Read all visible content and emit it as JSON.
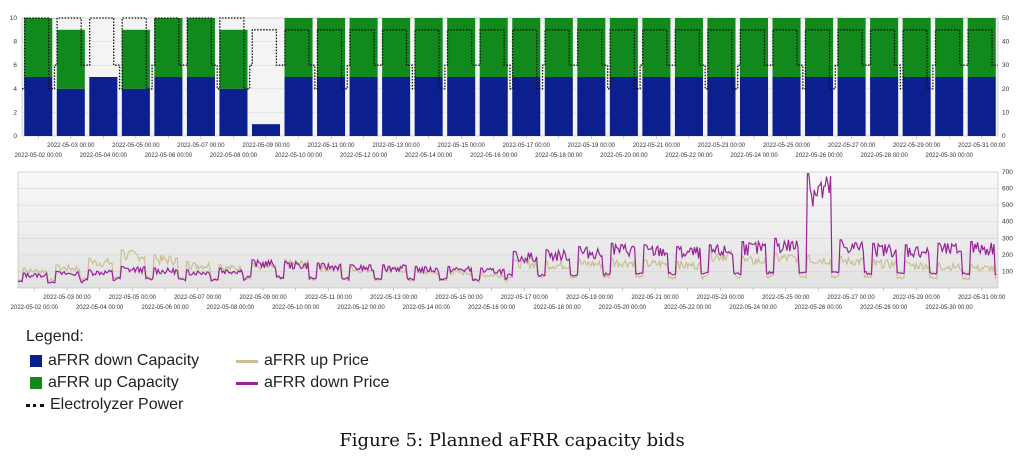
{
  "chart_data": [
    {
      "type": "area",
      "title": "",
      "xlabel": "",
      "ylabel": "",
      "ylim_left": [
        0,
        10
      ],
      "ylim_right": [
        0,
        50
      ],
      "yticks_left": [
        "0",
        "2",
        "4",
        "6",
        "8",
        "10"
      ],
      "yticks_right": [
        "0",
        "10",
        "20",
        "30",
        "40",
        "50"
      ],
      "grid": true,
      "xticks": [
        "2022-05-02 00:00",
        "2022-05-03 00:00",
        "2022-05-04 00:00",
        "2022-05-05 00:00",
        "2022-05-06 00:00",
        "2022-05-07 00:00",
        "2022-05-08 00:00",
        "2022-05-09 00:00",
        "2022-05-10 00:00",
        "2022-05-11 00:00",
        "2022-05-12 00:00",
        "2022-05-13 00:00",
        "2022-05-14 00:00",
        "2022-05-15 00:00",
        "2022-05-16 00:00",
        "2022-05-17 00:00",
        "2022-05-18 00:00",
        "2022-05-19 00:00",
        "2022-05-20 00:00",
        "2022-05-21 00:00",
        "2022-05-22 00:00",
        "2022-05-23 00:00",
        "2022-05-24 00:00",
        "2022-05-25 00:00",
        "2022-05-26 00:00",
        "2022-05-27 00:00",
        "2022-05-28 00:00",
        "2022-05-29 00:00",
        "2022-05-30 00:00",
        "2022-05-31 00:00"
      ],
      "day_start": "2022-05-01 12:00",
      "days": 30.5,
      "series": [
        {
          "name": "aFRR down Capacity",
          "color": "#0b1f8f",
          "axis": "left",
          "kind": "stacked-area"
        },
        {
          "name": "aFRR up Capacity",
          "color": "#11891c",
          "axis": "left",
          "kind": "stacked-area"
        },
        {
          "name": "Electrolyzer Power",
          "color": "#111111",
          "axis": "right",
          "kind": "dotted-line"
        }
      ],
      "down_capacity_daily": [
        5,
        4,
        5,
        4,
        5,
        5,
        4,
        1,
        5,
        5,
        5,
        5,
        5,
        5,
        5,
        5,
        5,
        5,
        5,
        5,
        5,
        5,
        5,
        5,
        5,
        5,
        5,
        5,
        5,
        5
      ],
      "up_capacity_daily": [
        5,
        5,
        0,
        5,
        5,
        5,
        5,
        0,
        5,
        5,
        5,
        5,
        5,
        5,
        5,
        5,
        5,
        5,
        5,
        5,
        5,
        5,
        5,
        5,
        5,
        5,
        5,
        5,
        5,
        5
      ],
      "electrolyzer_power_levels": [
        45,
        20,
        30,
        47,
        50
      ]
    },
    {
      "type": "line",
      "title": "",
      "xlabel": "",
      "ylabel": "",
      "ylim_right": [
        0,
        700
      ],
      "yticks_right": [
        "100",
        "200",
        "300",
        "400",
        "500",
        "600",
        "700"
      ],
      "grid": true,
      "xticks": [
        "2022-05-02 00:00",
        "2022-05-03 00:00",
        "2022-05-04 00:00",
        "2022-05-05 00:00",
        "2022-05-06 00:00",
        "2022-05-07 00:00",
        "2022-05-08 00:00",
        "2022-05-09 00:00",
        "2022-05-10 00:00",
        "2022-05-11 00:00",
        "2022-05-12 00:00",
        "2022-05-13 00:00",
        "2022-05-14 00:00",
        "2022-05-15 00:00",
        "2022-05-16 00:00",
        "2022-05-17 00:00",
        "2022-05-18 00:00",
        "2022-05-19 00:00",
        "2022-05-20 00:00",
        "2022-05-21 00:00",
        "2022-05-22 00:00",
        "2022-05-23 00:00",
        "2022-05-24 00:00",
        "2022-05-25 00:00",
        "2022-05-26 00:00",
        "2022-05-27 00:00",
        "2022-05-28 00:00",
        "2022-05-29 00:00",
        "2022-05-30 00:00",
        "2022-05-31 00:00"
      ],
      "series": [
        {
          "name": "aFRR up Price",
          "color": "#c9bf93",
          "daily_peak": [
            120,
            140,
            180,
            230,
            200,
            160,
            140,
            150,
            170,
            140,
            130,
            130,
            110,
            110,
            90,
            170,
            160,
            170,
            180,
            170,
            160,
            230,
            190,
            210,
            200,
            190,
            170,
            160,
            150,
            140
          ],
          "daily_base": [
            40,
            40,
            50,
            60,
            50,
            50,
            45,
            50,
            50,
            45,
            45,
            45,
            40,
            40,
            35,
            60,
            60,
            60,
            60,
            60,
            55,
            70,
            60,
            65,
            60,
            60,
            55,
            55,
            50,
            50
          ]
        },
        {
          "name": "aFRR down Price",
          "color": "#992299",
          "daily_peak": [
            90,
            100,
            110,
            130,
            120,
            110,
            120,
            170,
            160,
            150,
            140,
            140,
            130,
            130,
            120,
            220,
            230,
            250,
            270,
            260,
            250,
            260,
            280,
            300,
            690,
            290,
            270,
            260,
            270,
            280
          ],
          "daily_base": [
            30,
            30,
            40,
            50,
            45,
            40,
            45,
            60,
            55,
            50,
            50,
            50,
            45,
            45,
            40,
            70,
            70,
            70,
            80,
            80,
            75,
            80,
            80,
            85,
            90,
            85,
            80,
            80,
            80,
            80
          ]
        }
      ]
    }
  ],
  "legend": {
    "title": "Legend:",
    "items": [
      {
        "label": "aFRR down Capacity",
        "color": "#0b1f8f",
        "kind": "box"
      },
      {
        "label": "aFRR up Capacity",
        "color": "#11891c",
        "kind": "box"
      },
      {
        "label": "Electrolyzer Power",
        "color": "#111111",
        "kind": "dotted"
      },
      {
        "label": "aFRR up Price",
        "color": "#c9bf93",
        "kind": "line"
      },
      {
        "label": "aFRR down Price",
        "color": "#992299",
        "kind": "line"
      }
    ]
  },
  "caption": "Figure 5: Planned aFRR capacity bids"
}
